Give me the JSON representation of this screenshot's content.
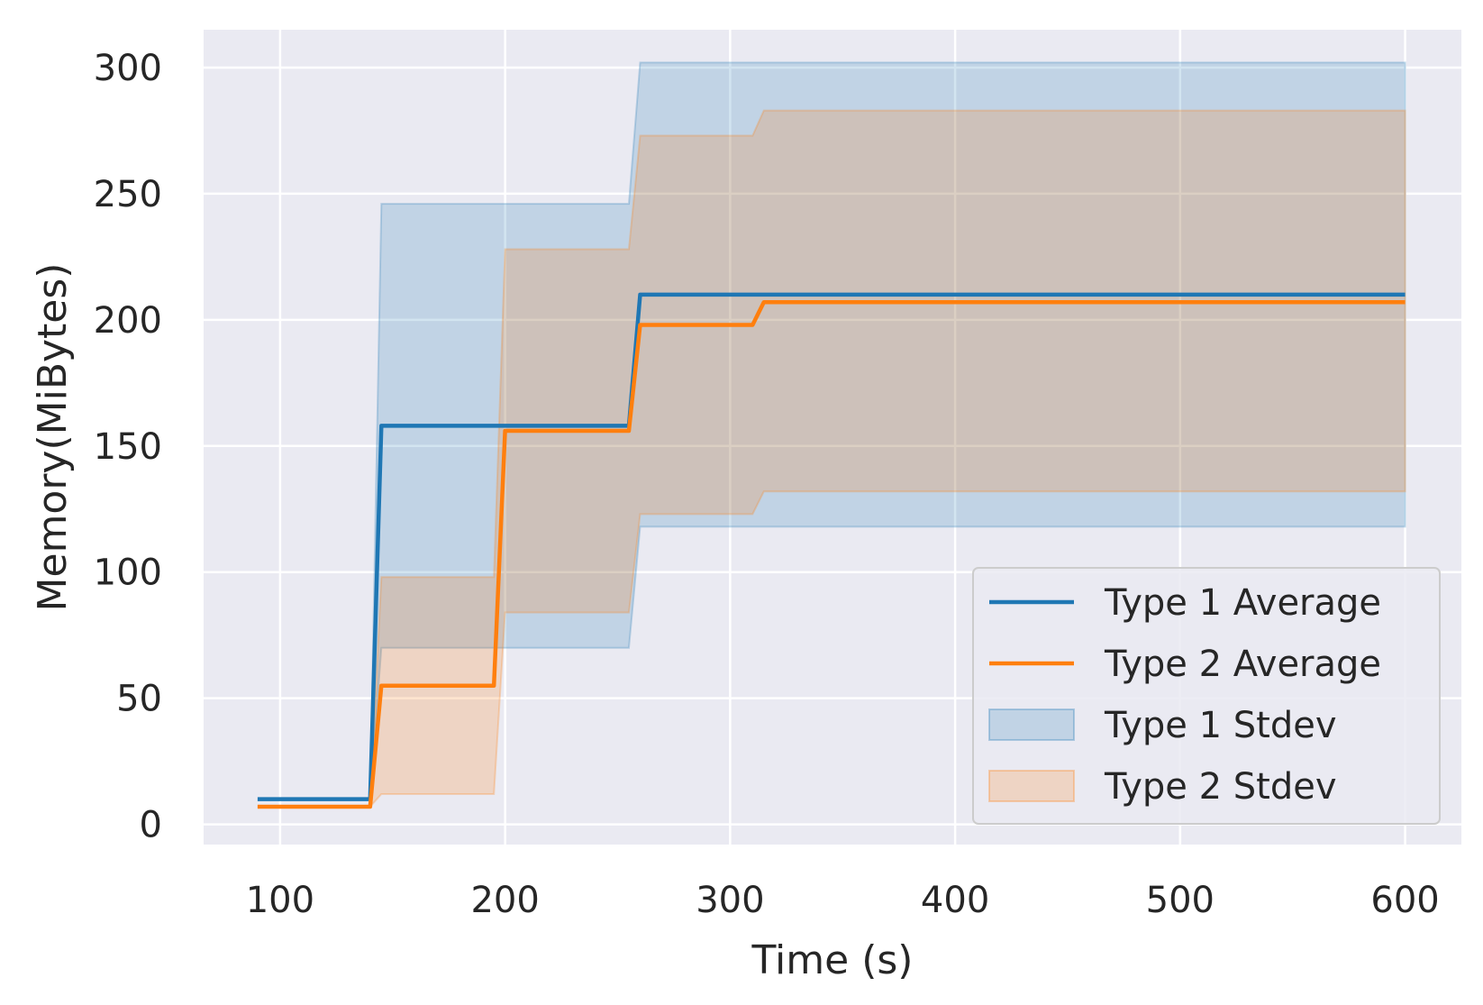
{
  "chart_data": {
    "type": "line",
    "title": "",
    "xlabel": "Time (s)",
    "ylabel": "Memory(MiBytes)",
    "xlim": [
      66,
      625
    ],
    "ylim": [
      -8,
      315
    ],
    "xticks": [
      100,
      200,
      300,
      400,
      500,
      600
    ],
    "yticks": [
      0,
      50,
      100,
      150,
      200,
      250,
      300
    ],
    "grid": true,
    "legend_position": "lower-right",
    "colors": {
      "type1": "#1f77b4",
      "type2": "#ff7f0e",
      "background": "#eaeaf2",
      "grid": "#ffffff"
    },
    "series": [
      {
        "name": "Type 1 Average",
        "kind": "line",
        "color": "#1f77b4",
        "x": [
          90,
          140,
          145,
          255,
          260,
          600
        ],
        "y": [
          10,
          10,
          158,
          158,
          210,
          210
        ]
      },
      {
        "name": "Type 2 Average",
        "kind": "line",
        "color": "#ff7f0e",
        "x": [
          90,
          140,
          145,
          195,
          200,
          255,
          260,
          310,
          315,
          600
        ],
        "y": [
          7,
          7,
          55,
          55,
          156,
          156,
          198,
          198,
          207,
          207
        ]
      },
      {
        "name": "Type 1 Stdev",
        "kind": "band",
        "color": "#1f77b4",
        "x": [
          140,
          145,
          255,
          260,
          600
        ],
        "lower": [
          10,
          70,
          70,
          118,
          118
        ],
        "upper": [
          10,
          246,
          246,
          302,
          302
        ]
      },
      {
        "name": "Type 2 Stdev",
        "kind": "band",
        "color": "#ff7f0e",
        "x": [
          90,
          140,
          145,
          195,
          200,
          255,
          260,
          310,
          315,
          600
        ],
        "lower": [
          7,
          7,
          12,
          12,
          84,
          84,
          123,
          123,
          132,
          132
        ],
        "upper": [
          7,
          7,
          98,
          98,
          228,
          228,
          273,
          273,
          283,
          283
        ]
      }
    ]
  }
}
